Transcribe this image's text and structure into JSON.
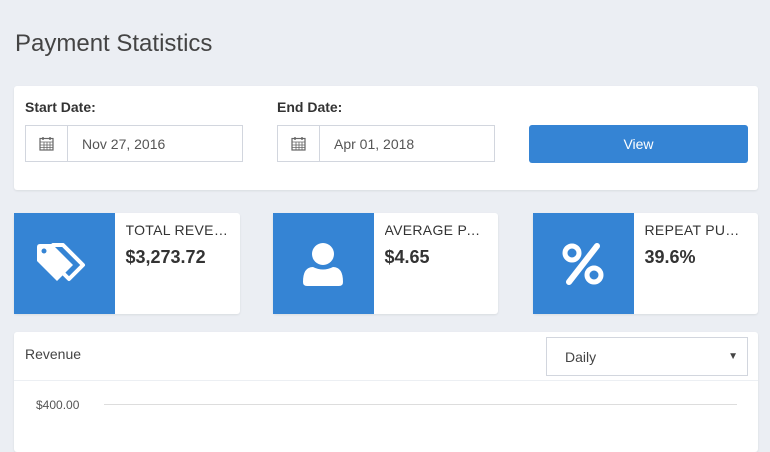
{
  "page": {
    "title": "Payment Statistics"
  },
  "filters": {
    "start_label": "Start Date:",
    "start_value": "Nov 27, 2016",
    "end_label": "End Date:",
    "end_value": "Apr 01, 2018",
    "view_label": "View"
  },
  "stats": [
    {
      "label": "TOTAL REVENUE",
      "value": "$3,273.72",
      "icon": "tags-icon"
    },
    {
      "label": "AVERAGE PAYMENT",
      "value": "$4.65",
      "icon": "user-icon"
    },
    {
      "label": "REPEAT PURCHASES",
      "value": "39.6%",
      "icon": "percent-icon"
    }
  ],
  "chart": {
    "title": "Revenue",
    "period": "Daily",
    "y_tick": "$400.00"
  },
  "colors": {
    "accent": "#3584d4",
    "background": "#ebeef3"
  }
}
